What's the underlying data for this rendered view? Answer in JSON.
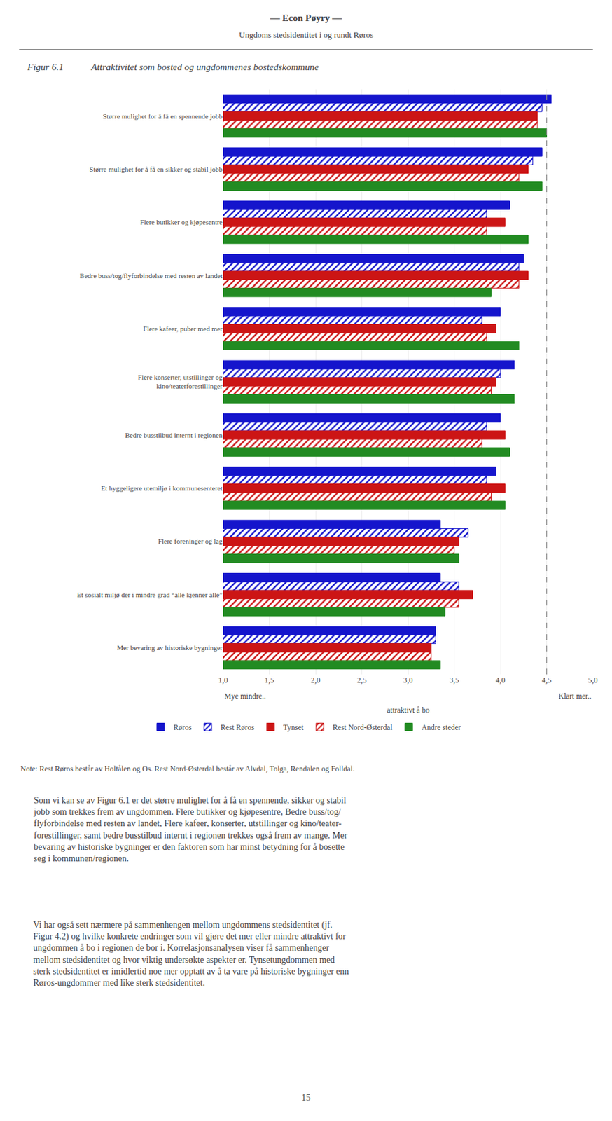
{
  "chart_data": {
    "type": "bar",
    "orientation": "horizontal",
    "title": "— Econ Pøyry —",
    "subtitle": "Ungdoms stedsidentitet i og rundt Røros",
    "figure_label": "Figur 6.1",
    "figure_title": "Attraktivitet som bosted og ungdommenes bostedskommune",
    "categories": [
      "Større mulighet for å få en spennende jobb",
      "Større mulighet for å få en sikker og stabil jobb",
      "Flere butikker og kjøpesentre",
      "Bedre buss/tog/flyforbindelse med resten av landet",
      "Flere kafeer, puber med mer",
      "Flere konserter, utstillinger og\nkino/teaterforestillinger",
      "Bedre busstilbud internt i regionen",
      "Et hyggeligere utemiljø i kommunesenteret",
      "Flere foreninger og lag",
      "Et sosialt miljø der i mindre grad “alle kjenner alle”",
      "Mer bevaring av historiske bygninger"
    ],
    "series": [
      {
        "name": "Røros",
        "color": "#1515CC",
        "marker": "solid",
        "values": [
          4.55,
          4.45,
          4.1,
          4.25,
          4.0,
          4.15,
          4.0,
          3.95,
          3.35,
          3.35,
          3.3
        ]
      },
      {
        "name": "Rest Røros",
        "color": "#1515CC",
        "marker": "hatched",
        "values": [
          4.45,
          4.35,
          3.85,
          4.2,
          3.8,
          4.0,
          3.85,
          3.85,
          3.65,
          3.55,
          3.3
        ]
      },
      {
        "name": "Tynset",
        "color": "#CC1515",
        "marker": "solid",
        "values": [
          4.4,
          4.3,
          4.05,
          4.3,
          3.95,
          3.95,
          4.05,
          4.05,
          3.55,
          3.7,
          3.25
        ]
      },
      {
        "name": "Rest Nord-Østerdal",
        "color": "#CC1515",
        "marker": "hatched",
        "values": [
          4.4,
          4.2,
          3.85,
          4.2,
          3.85,
          3.9,
          3.8,
          3.9,
          3.5,
          3.55,
          3.25
        ]
      },
      {
        "name": "Andre steder",
        "color": "#228B22",
        "marker": "solid",
        "values": [
          4.5,
          4.45,
          4.3,
          3.9,
          4.2,
          4.15,
          4.1,
          4.05,
          3.55,
          3.4,
          3.35
        ]
      }
    ],
    "xlim": [
      1.0,
      5.0
    ],
    "xticks": [
      {
        "value": 1.0,
        "label": "1,0"
      },
      {
        "value": 1.5,
        "label": "1,5"
      },
      {
        "value": 2.0,
        "label": "2,0"
      },
      {
        "value": 2.5,
        "label": "2,5"
      },
      {
        "value": 3.0,
        "label": "3,0"
      },
      {
        "value": 3.5,
        "label": "3,5"
      },
      {
        "value": 4.0,
        "label": "4,0"
      },
      {
        "value": 4.5,
        "label": "4,5"
      },
      {
        "value": 5.0,
        "label": "5,0"
      }
    ],
    "vline": 4.5,
    "grid": true,
    "legend": "bottom",
    "xlabel_left": "Mye mindre..",
    "xlabel_right": "Klart mer..",
    "xlabel": "attraktivt å bo",
    "note": "Note:\tRest Røros består av Holtålen og Os. Rest Nord-Østerdal består av Alvdal, Tolga, Rendalen og Folldal.",
    "body_text": [
      "Som vi kan se av Figur 6.1 er det større mulighet for å få en spennende, sikker og stabil\njobb som trekkes frem av ungdommen. Flere butikker og kjøpesentre, Bedre buss/tog/\nflyforbindelse med resten av landet, Flere kafeer, konserter, utstillinger og kino/teater-\nforestillinger, samt bedre busstilbud internt i regionen trekkes også frem av mange. Mer\nbevaring av historiske bygninger er den faktoren som har minst betydning for å bosette\nseg i kommunen/regionen.",
      "Vi har også sett nærmere på sammenhengen mellom ungdommens stedsidentitet (jf.\nFigur 4.2) og hvilke konkrete endringer som vil gjøre det mer eller mindre attraktivt for\nungdommen å bo i regionen de bor i. Korrelasjonsanalysen viser få sammenhenger\nmellom stedsidentitet og hvor viktig undersøkte aspekter er. Tynsetungdommen med\nsterk stedsidentitet er imidlertid noe mer opptatt av å ta vare på historiske bygninger enn\nRøros-ungdommer med like sterk stedsidentitet."
    ],
    "page_number": "15"
  }
}
